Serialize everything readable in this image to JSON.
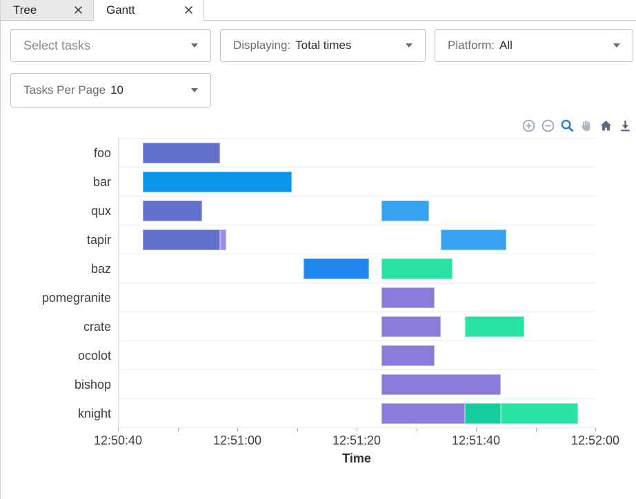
{
  "tabs": [
    {
      "label": "Tree",
      "active": false,
      "close_icon": "close-icon"
    },
    {
      "label": "Gantt",
      "active": true,
      "close_icon": "close-icon"
    }
  ],
  "filters": {
    "select_tasks": {
      "placeholder": "Select tasks"
    },
    "displaying": {
      "label": "Displaying:",
      "value": "Total times"
    },
    "platform": {
      "label": "Platform:",
      "value": "All"
    },
    "tasks_per_page": {
      "label": "Tasks Per Page",
      "value": "10"
    }
  },
  "modebar": {
    "icons": [
      {
        "name": "zoom-in-icon",
        "color": "#97a5b6"
      },
      {
        "name": "zoom-out-icon",
        "color": "#97a5b6"
      },
      {
        "name": "zoom-icon",
        "color": "#2b7ce0",
        "active": true
      },
      {
        "name": "pan-icon",
        "color": "#a9b5c3"
      },
      {
        "name": "home-icon",
        "color": "#5b6d87"
      },
      {
        "name": "download-icon",
        "color": "#50617b"
      }
    ]
  },
  "chart_data": {
    "type": "gantt",
    "title": "",
    "xlabel": "Time",
    "x_range": [
      "12:50:40",
      "12:52:00"
    ],
    "x_ticks": [
      "12:50:40",
      "12:51:00",
      "12:51:20",
      "12:51:40",
      "12:52:00"
    ],
    "minor_tick_interval_seconds": 10,
    "grid": "row-separators",
    "colors": {
      "dark_purple": "#6270cb",
      "light_purple": "#8c7bdb",
      "lavender": "#9d8be8",
      "bright_blue": "#0998eb",
      "light_blue": "#36a3f2",
      "deep_blue": "#1f88f2",
      "green": "#29e3a4",
      "teal": "#17cda0"
    },
    "tasks": [
      {
        "name": "foo",
        "segments": [
          {
            "start": "12:50:44",
            "end": "12:50:57",
            "color": "#6270cb"
          }
        ]
      },
      {
        "name": "bar",
        "segments": [
          {
            "start": "12:50:44",
            "end": "12:51:09",
            "color": "#0998eb"
          }
        ]
      },
      {
        "name": "qux",
        "segments": [
          {
            "start": "12:50:44",
            "end": "12:50:54",
            "color": "#6270cb"
          },
          {
            "start": "12:51:24",
            "end": "12:51:32",
            "color": "#36a3f2"
          }
        ]
      },
      {
        "name": "tapir",
        "segments": [
          {
            "start": "12:50:44",
            "end": "12:50:57",
            "color": "#6270cb"
          },
          {
            "start": "12:50:57",
            "end": "12:50:58",
            "color": "#9d8be8"
          },
          {
            "start": "12:51:34",
            "end": "12:51:45",
            "color": "#36a3f2"
          }
        ]
      },
      {
        "name": "baz",
        "segments": [
          {
            "start": "12:51:11",
            "end": "12:51:22",
            "color": "#1f88f2"
          },
          {
            "start": "12:51:24",
            "end": "12:51:36",
            "color": "#29e3a4"
          }
        ]
      },
      {
        "name": "pomegranite",
        "segments": [
          {
            "start": "12:51:24",
            "end": "12:51:33",
            "color": "#8c7bdb"
          }
        ]
      },
      {
        "name": "crate",
        "segments": [
          {
            "start": "12:51:24",
            "end": "12:51:34",
            "color": "#8c7bdb"
          },
          {
            "start": "12:51:38",
            "end": "12:51:48",
            "color": "#29e3a4"
          }
        ]
      },
      {
        "name": "ocolot",
        "segments": [
          {
            "start": "12:51:24",
            "end": "12:51:33",
            "color": "#8c7bdb"
          }
        ]
      },
      {
        "name": "bishop",
        "segments": [
          {
            "start": "12:51:24",
            "end": "12:51:44",
            "color": "#8c7bdb"
          }
        ]
      },
      {
        "name": "knight",
        "segments": [
          {
            "start": "12:51:24",
            "end": "12:51:38",
            "color": "#8c7bdb"
          },
          {
            "start": "12:51:38",
            "end": "12:51:44",
            "color": "#17cda0"
          },
          {
            "start": "12:51:44",
            "end": "12:51:57",
            "color": "#29e3a4"
          }
        ]
      }
    ]
  }
}
